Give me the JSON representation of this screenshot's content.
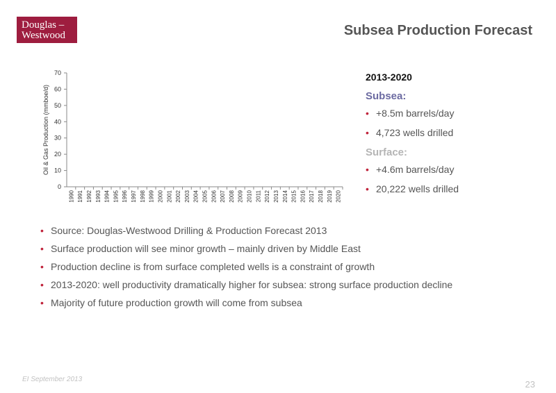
{
  "logo": {
    "line1": "Douglas –",
    "line2": "Westwood",
    "color": "#9e1d3f"
  },
  "title": "Subsea Production Forecast",
  "chart_data": {
    "type": "line",
    "xlabel": "",
    "ylabel": "Oil & Gas Production (mmboe/d)",
    "ylim": [
      0,
      70
    ],
    "y_ticks": [
      0,
      10,
      20,
      30,
      40,
      50,
      60,
      70
    ],
    "categories": [
      "1990",
      "1991",
      "1992",
      "1993",
      "1994",
      "1995",
      "1996",
      "1997",
      "1998",
      "1999",
      "2000",
      "2001",
      "2002",
      "2003",
      "2004",
      "2005",
      "2006",
      "2007",
      "2008",
      "2009",
      "2010",
      "2011",
      "2012",
      "2013",
      "2014",
      "2015",
      "2016",
      "2017",
      "2018",
      "2019",
      "2020"
    ],
    "series": [],
    "grid": false
  },
  "stats": {
    "period": "2013-2020",
    "subsea_header": "Subsea:",
    "subsea_items": [
      "+8.5m barrels/day",
      "4,723 wells drilled"
    ],
    "surface_header": "Surface:",
    "surface_items": [
      "+4.6m barrels/day",
      "20,222 wells drilled"
    ]
  },
  "bullet_symbol": "•",
  "notes": [
    "Source: Douglas-Westwood Drilling & Production Forecast 2013",
    "Surface production will see minor growth – mainly driven by Middle East",
    "Production decline is from surface completed wells is a constraint of growth",
    "2013-2020: well productivity dramatically higher for subsea: strong surface production decline",
    "Majority of future production growth will come from subsea"
  ],
  "footer": {
    "left": "EI September 2013",
    "page": "23"
  },
  "colors": {
    "accent": "#c0243c",
    "subsea": "#6b6aa1",
    "surface": "#b5b5b5"
  }
}
